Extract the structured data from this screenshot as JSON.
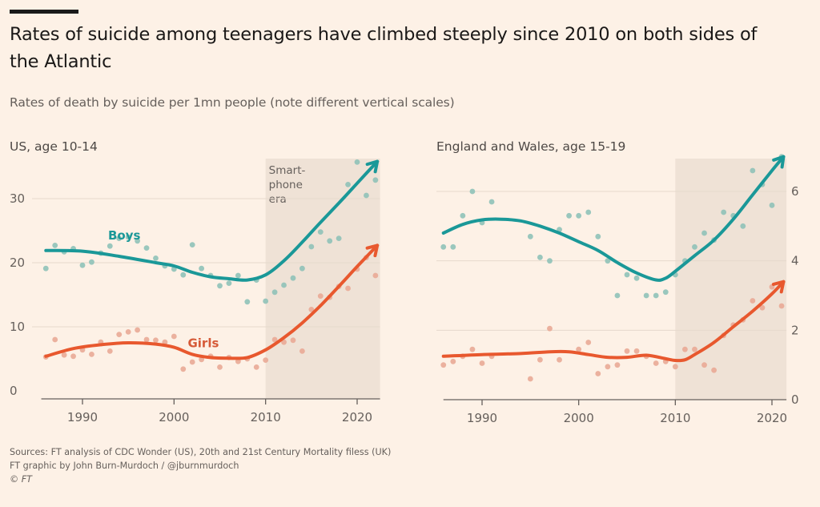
{
  "header": {
    "title": "Rates of suicide among teenagers have climbed steeply since 2010 on both sides of the Atlantic",
    "subtitle": "Rates of death by suicide per 1mn people (note different vertical scales)"
  },
  "footer": {
    "sources": "Sources: FT analysis of CDC Wonder (US), 20th and 21st Century Mortality filess (UK)",
    "credit": "FT graphic by John Burn-Murdoch / @jburnmurdoch",
    "copyright": "© FT"
  },
  "colors": {
    "boys": "#1a9898",
    "girls": "#e8582e",
    "boys_dots": "#8fc2b8",
    "girls_dots": "#e9aa96",
    "shade": "#efe2d6",
    "grid": "#e6d9cc",
    "axis": "#66605c"
  },
  "chart_data": [
    {
      "type": "scatter",
      "title": "US, age 10-14",
      "xlabel": "",
      "ylabel": "Rates of death by suicide per 1mn people",
      "xlim": [
        1985.5,
        2022.5
      ],
      "ylim": [
        0,
        37
      ],
      "yaxis_side": "left",
      "x_ticks": [
        1990,
        2000,
        2010,
        2020
      ],
      "y_ticks": [
        0,
        10,
        20,
        30
      ],
      "grid": true,
      "shaded_region": {
        "x_start": 2010,
        "x_end": 2022.5,
        "label": [
          "Smart-",
          "phone",
          "era"
        ]
      },
      "series": [
        {
          "name": "Boys",
          "label_at": [
            1992.8,
            23.6
          ],
          "points": [
            [
              1986,
              19.1
            ],
            [
              1987,
              22.7
            ],
            [
              1988,
              21.7
            ],
            [
              1989,
              22.2
            ],
            [
              1990,
              19.6
            ],
            [
              1991,
              20.1
            ],
            [
              1992,
              21.5
            ],
            [
              1993,
              22.6
            ],
            [
              1994,
              23.8
            ],
            [
              1995,
              24.0
            ],
            [
              1996,
              23.4
            ],
            [
              1997,
              22.3
            ],
            [
              1998,
              20.7
            ],
            [
              1999,
              19.5
            ],
            [
              2000,
              19.0
            ],
            [
              2001,
              18.1
            ],
            [
              2002,
              22.8
            ],
            [
              2003,
              19.1
            ],
            [
              2004,
              18.0
            ],
            [
              2005,
              16.4
            ],
            [
              2006,
              16.8
            ],
            [
              2007,
              18.0
            ],
            [
              2008,
              13.9
            ],
            [
              2009,
              17.3
            ],
            [
              2010,
              14.0
            ],
            [
              2011,
              15.4
            ],
            [
              2012,
              16.5
            ],
            [
              2013,
              17.6
            ],
            [
              2014,
              19.1
            ],
            [
              2015,
              22.5
            ],
            [
              2016,
              24.8
            ],
            [
              2017,
              23.4
            ],
            [
              2018,
              23.8
            ],
            [
              2019,
              32.2
            ],
            [
              2020,
              35.7
            ],
            [
              2021,
              30.5
            ],
            [
              2022,
              32.9
            ]
          ],
          "trend": [
            [
              1986,
              21.9
            ],
            [
              1990,
              21.8
            ],
            [
              1994,
              21.0
            ],
            [
              1998,
              20.0
            ],
            [
              2000,
              19.5
            ],
            [
              2002,
              18.5
            ],
            [
              2004,
              17.8
            ],
            [
              2006,
              17.5
            ],
            [
              2008,
              17.3
            ],
            [
              2010,
              18.1
            ],
            [
              2012,
              20.3
            ],
            [
              2014,
              23.2
            ],
            [
              2016,
              26.3
            ],
            [
              2018,
              29.3
            ],
            [
              2020,
              32.4
            ],
            [
              2022.2,
              35.8
            ]
          ]
        },
        {
          "name": "Girls",
          "label_at": [
            2001.5,
            6.8
          ],
          "points": [
            [
              1986,
              5.3
            ],
            [
              1987,
              8.0
            ],
            [
              1988,
              5.6
            ],
            [
              1989,
              5.4
            ],
            [
              1990,
              6.4
            ],
            [
              1991,
              5.7
            ],
            [
              1992,
              7.6
            ],
            [
              1993,
              6.2
            ],
            [
              1994,
              8.8
            ],
            [
              1995,
              9.2
            ],
            [
              1996,
              9.5
            ],
            [
              1997,
              8.0
            ],
            [
              1998,
              7.9
            ],
            [
              1999,
              7.6
            ],
            [
              2000,
              8.5
            ],
            [
              2001,
              3.4
            ],
            [
              2002,
              4.5
            ],
            [
              2003,
              4.9
            ],
            [
              2004,
              5.4
            ],
            [
              2005,
              3.7
            ],
            [
              2006,
              5.2
            ],
            [
              2007,
              4.6
            ],
            [
              2008,
              5.0
            ],
            [
              2009,
              3.7
            ],
            [
              2010,
              4.8
            ],
            [
              2011,
              8.0
            ],
            [
              2012,
              7.6
            ],
            [
              2013,
              7.9
            ],
            [
              2014,
              6.2
            ],
            [
              2015,
              12.7
            ],
            [
              2016,
              14.8
            ],
            [
              2017,
              14.6
            ],
            [
              2018,
              16.3
            ],
            [
              2019,
              16.0
            ],
            [
              2020,
              19.0
            ],
            [
              2021,
              20.8
            ],
            [
              2022,
              18.0
            ]
          ],
          "trend": [
            [
              1986,
              5.4
            ],
            [
              1989,
              6.6
            ],
            [
              1992,
              7.2
            ],
            [
              1995,
              7.5
            ],
            [
              1998,
              7.3
            ],
            [
              2000,
              6.8
            ],
            [
              2002,
              5.7
            ],
            [
              2004,
              5.2
            ],
            [
              2006,
              5.1
            ],
            [
              2008,
              5.2
            ],
            [
              2010,
              6.4
            ],
            [
              2012,
              8.3
            ],
            [
              2014,
              10.6
            ],
            [
              2016,
              13.3
            ],
            [
              2018,
              16.3
            ],
            [
              2020,
              19.4
            ],
            [
              2022.2,
              22.7
            ]
          ]
        }
      ]
    },
    {
      "type": "scatter",
      "title": "England and Wales, age 15-19",
      "xlabel": "",
      "ylabel": "Rates of death by suicide per 1mn people",
      "xlim": [
        1986,
        2021.5
      ],
      "ylim": [
        0,
        7.4
      ],
      "yaxis_side": "right",
      "x_ticks": [
        1990,
        2000,
        2010,
        2020
      ],
      "y_ticks": [
        0,
        2,
        4,
        6
      ],
      "grid": true,
      "shaded_region": {
        "x_start": 2010,
        "x_end": 2021.5,
        "label": []
      },
      "series": [
        {
          "name": "Boys",
          "label_at": null,
          "points": [
            [
              1986,
              4.4
            ],
            [
              1987,
              4.4
            ],
            [
              1988,
              5.3
            ],
            [
              1989,
              6.0
            ],
            [
              1990,
              5.1
            ],
            [
              1991,
              5.7
            ],
            [
              1995,
              4.7
            ],
            [
              1996,
              4.1
            ],
            [
              1997,
              4.0
            ],
            [
              1998,
              4.9
            ],
            [
              1999,
              5.3
            ],
            [
              2000,
              5.3
            ],
            [
              2001,
              5.4
            ],
            [
              2002,
              4.7
            ],
            [
              2003,
              4.0
            ],
            [
              2004,
              3.0
            ],
            [
              2005,
              3.6
            ],
            [
              2006,
              3.5
            ],
            [
              2007,
              3.0
            ],
            [
              2008,
              3.0
            ],
            [
              2009,
              3.1
            ],
            [
              2010,
              3.6
            ],
            [
              2011,
              4.0
            ],
            [
              2012,
              4.4
            ],
            [
              2013,
              4.8
            ],
            [
              2014,
              4.6
            ],
            [
              2015,
              5.4
            ],
            [
              2016,
              5.3
            ],
            [
              2017,
              5.0
            ],
            [
              2018,
              6.6
            ],
            [
              2019,
              6.2
            ],
            [
              2020,
              5.6
            ],
            [
              2021,
              7.0
            ]
          ],
          "trend": [
            [
              1986,
              4.8
            ],
            [
              1988,
              5.05
            ],
            [
              1990,
              5.18
            ],
            [
              1992,
              5.2
            ],
            [
              1994,
              5.15
            ],
            [
              1996,
              5.0
            ],
            [
              1998,
              4.8
            ],
            [
              2000,
              4.55
            ],
            [
              2002,
              4.3
            ],
            [
              2004,
              3.95
            ],
            [
              2006,
              3.65
            ],
            [
              2008,
              3.45
            ],
            [
              2009,
              3.5
            ],
            [
              2010,
              3.7
            ],
            [
              2012,
              4.15
            ],
            [
              2014,
              4.6
            ],
            [
              2016,
              5.2
            ],
            [
              2018,
              5.9
            ],
            [
              2020,
              6.6
            ],
            [
              2021.2,
              7.0
            ]
          ]
        },
        {
          "name": "Girls",
          "label_at": null,
          "points": [
            [
              1986,
              1.0
            ],
            [
              1987,
              1.1
            ],
            [
              1988,
              1.25
            ],
            [
              1989,
              1.45
            ],
            [
              1990,
              1.05
            ],
            [
              1991,
              1.25
            ],
            [
              1995,
              0.6
            ],
            [
              1996,
              1.15
            ],
            [
              1997,
              2.05
            ],
            [
              1998,
              1.15
            ],
            [
              2000,
              1.45
            ],
            [
              2001,
              1.65
            ],
            [
              2002,
              0.75
            ],
            [
              2003,
              0.95
            ],
            [
              2004,
              1.0
            ],
            [
              2005,
              1.4
            ],
            [
              2006,
              1.4
            ],
            [
              2007,
              1.25
            ],
            [
              2008,
              1.05
            ],
            [
              2009,
              1.1
            ],
            [
              2010,
              0.95
            ],
            [
              2011,
              1.45
            ],
            [
              2012,
              1.45
            ],
            [
              2013,
              1.0
            ],
            [
              2014,
              0.85
            ],
            [
              2015,
              1.85
            ],
            [
              2016,
              2.15
            ],
            [
              2017,
              2.3
            ],
            [
              2018,
              2.85
            ],
            [
              2019,
              2.65
            ],
            [
              2020,
              3.25
            ],
            [
              2021,
              2.7
            ]
          ],
          "trend": [
            [
              1986,
              1.25
            ],
            [
              1990,
              1.3
            ],
            [
              1994,
              1.33
            ],
            [
              1997,
              1.38
            ],
            [
              1999,
              1.38
            ],
            [
              2001,
              1.3
            ],
            [
              2003,
              1.22
            ],
            [
              2005,
              1.22
            ],
            [
              2007,
              1.28
            ],
            [
              2009,
              1.18
            ],
            [
              2010,
              1.13
            ],
            [
              2011,
              1.15
            ],
            [
              2012,
              1.3
            ],
            [
              2014,
              1.65
            ],
            [
              2016,
              2.1
            ],
            [
              2018,
              2.55
            ],
            [
              2020,
              3.05
            ],
            [
              2021.2,
              3.4
            ]
          ]
        }
      ]
    }
  ]
}
